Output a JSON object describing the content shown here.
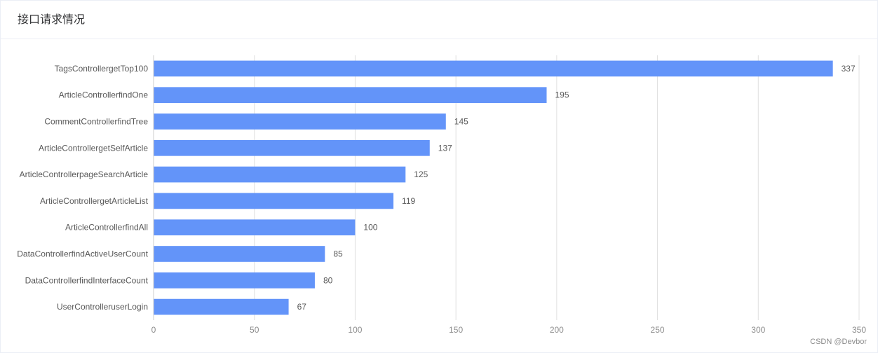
{
  "card": {
    "title": "接口请求情况"
  },
  "watermark": "CSDN @Devbor",
  "colors": {
    "bar": "#6394f9",
    "grid": "#e0e0e0",
    "axis": "#cccccc",
    "label": "#595959",
    "tick": "#8c8c8c"
  },
  "chart_data": {
    "type": "bar",
    "orientation": "horizontal",
    "categories": [
      "TagsControllergetTop100",
      "ArticleControllerfindOne",
      "CommentControllerfindTree",
      "ArticleControllergetSelfArticle",
      "ArticleControllerpageSearchArticle",
      "ArticleControllergetArticleList",
      "ArticleControllerfindAll",
      "DataControllerfindActiveUserCount",
      "DataControllerfindInterfaceCount",
      "UserControlleruserLogin"
    ],
    "values": [
      337,
      195,
      145,
      137,
      125,
      119,
      100,
      85,
      80,
      67
    ],
    "xlim": [
      0,
      350
    ],
    "xticks": [
      0,
      50,
      100,
      150,
      200,
      250,
      300,
      350
    ],
    "grid": true,
    "data_labels": true
  }
}
